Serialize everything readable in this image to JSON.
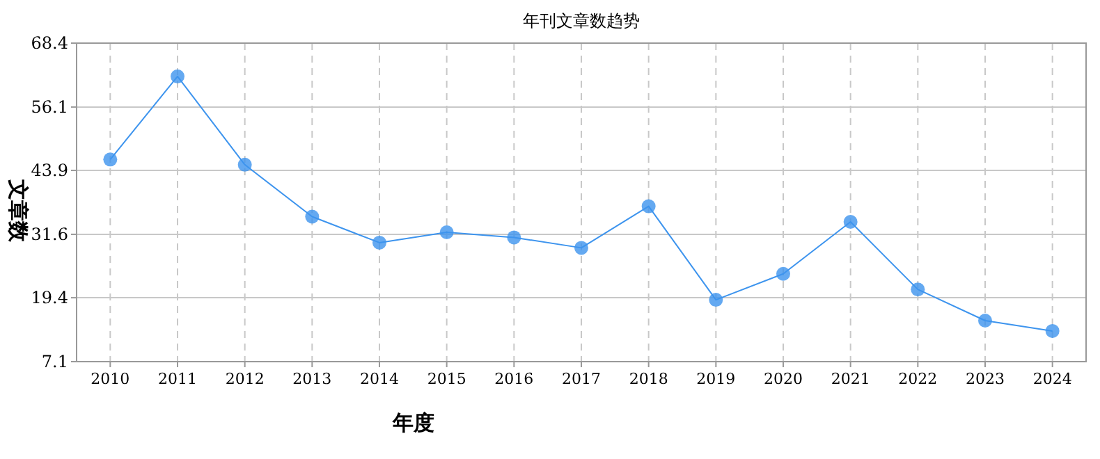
{
  "chart_data": {
    "type": "line",
    "title": "年刊文章数趋势",
    "xlabel": "年度",
    "ylabel": "文章数",
    "categories": [
      "2010",
      "2011",
      "2012",
      "2013",
      "2014",
      "2015",
      "2016",
      "2017",
      "2018",
      "2019",
      "2020",
      "2021",
      "2022",
      "2023",
      "2024"
    ],
    "series": [
      {
        "color": "#3d94ee",
        "values": [
          46,
          62,
          45,
          35,
          30,
          32,
          31,
          29,
          37,
          19,
          24,
          34,
          21,
          15,
          13
        ]
      }
    ],
    "ylim": [
      7.1,
      68.4
    ],
    "yticks": [
      7.1,
      19.4,
      31.6,
      43.9,
      56.1,
      68.4
    ],
    "grid": true,
    "marker": "circle",
    "line_style": "solid"
  }
}
